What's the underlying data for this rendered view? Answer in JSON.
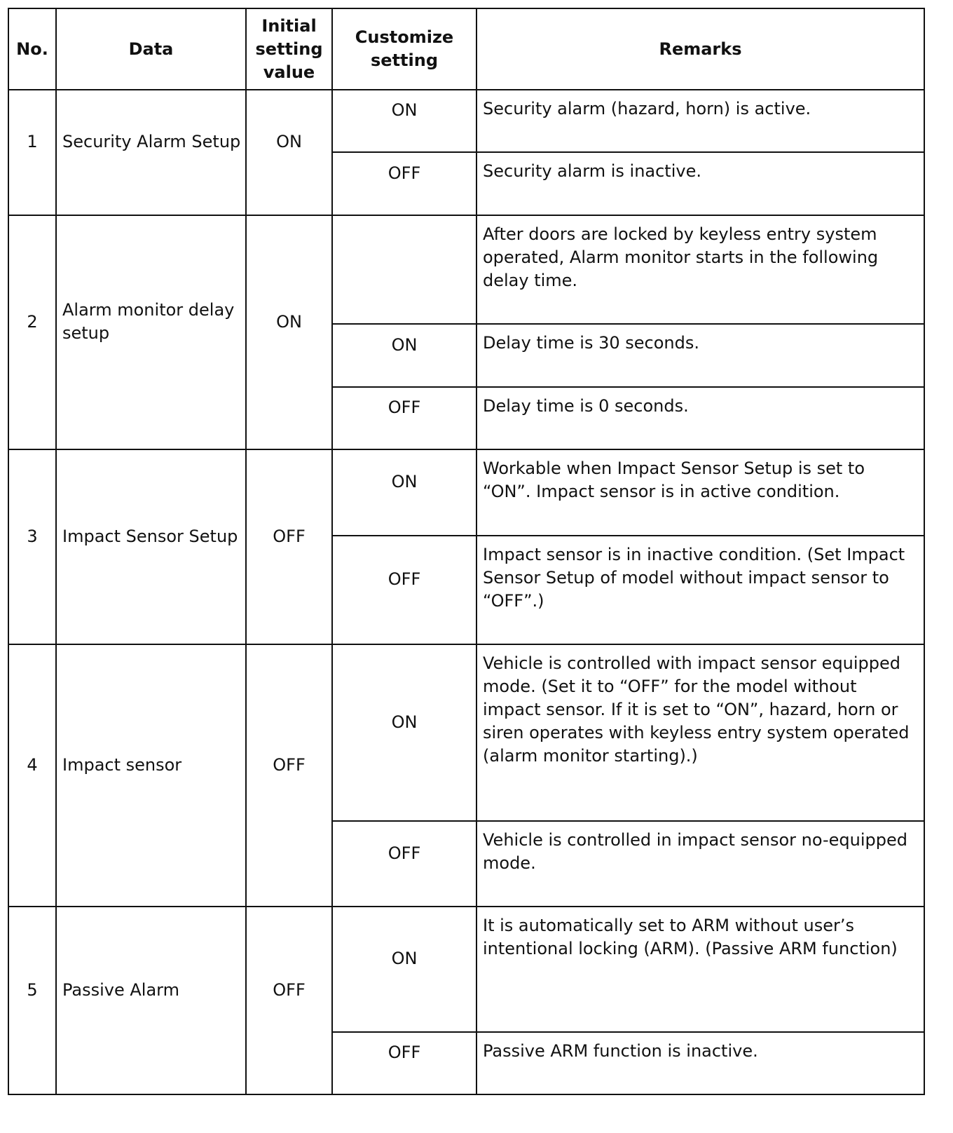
{
  "headers": {
    "no": "No.",
    "data": "Data",
    "initial": "Initial setting value",
    "customize": "Customize setting",
    "remarks": "Remarks"
  },
  "rows": [
    {
      "no": "1",
      "data": "Security Alarm Setup",
      "initial": "ON",
      "options": [
        {
          "setting": "ON",
          "remark": "Security alarm (hazard, horn) is active."
        },
        {
          "setting": "OFF",
          "remark": "Security alarm is inactive."
        }
      ]
    },
    {
      "no": "2",
      "data": "Alarm monitor delay setup",
      "initial": "ON",
      "options": [
        {
          "setting": "",
          "remark": "After doors are locked by keyless entry system operated, Alarm monitor starts in the following delay time."
        },
        {
          "setting": "ON",
          "remark": "Delay time is 30 seconds."
        },
        {
          "setting": "OFF",
          "remark": "Delay time is 0 seconds."
        }
      ]
    },
    {
      "no": "3",
      "data": "Impact Sensor Setup",
      "initial": "OFF",
      "options": [
        {
          "setting": "ON",
          "remark": "Workable when Impact Sensor Setup is set to “ON”. Impact sensor is in active condition."
        },
        {
          "setting": "OFF",
          "remark": "Impact sensor is in inactive condition. (Set Impact Sensor Setup of model without impact sensor to “OFF”.)"
        }
      ]
    },
    {
      "no": "4",
      "data": "Impact sensor",
      "initial": "OFF",
      "options": [
        {
          "setting": "ON",
          "remark": "Vehicle is controlled with impact sensor equipped mode. (Set it to “OFF” for the model without impact sensor. If it is set to “ON”, hazard, horn or siren operates with keyless entry system operated (alarm monitor starting).)"
        },
        {
          "setting": "OFF",
          "remark": "Vehicle is controlled in impact sensor no-equipped mode."
        }
      ]
    },
    {
      "no": "5",
      "data": "Passive Alarm",
      "initial": "OFF",
      "options": [
        {
          "setting": "ON",
          "remark": "It is automatically set to ARM without user’s intentional locking (ARM). (Passive ARM function)"
        },
        {
          "setting": "OFF",
          "remark": "Passive ARM function is inactive."
        }
      ]
    }
  ]
}
